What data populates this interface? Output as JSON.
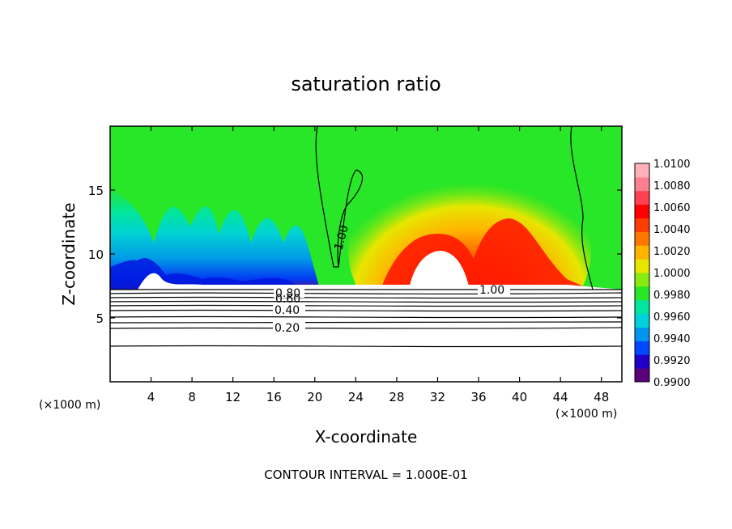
{
  "chart_data": {
    "type": "contour",
    "title": "saturation ratio",
    "xlabel": "X-coordinate",
    "ylabel": "Z-coordinate",
    "x_unit_left": "(×1000 m)",
    "x_unit_right": "(×1000 m)",
    "footer": "CONTOUR INTERVAL = 1.000E-01",
    "xlim": [
      0,
      50
    ],
    "ylim": [
      0,
      20
    ],
    "x_ticks": [
      "4",
      "8",
      "12",
      "16",
      "20",
      "24",
      "28",
      "32",
      "36",
      "40",
      "44",
      "48"
    ],
    "x_tick_values": [
      4,
      8,
      12,
      16,
      20,
      24,
      28,
      32,
      36,
      40,
      44,
      48
    ],
    "y_ticks": [
      "5",
      "10",
      "15"
    ],
    "y_tick_values": [
      5,
      10,
      15
    ],
    "colorbar": {
      "min": 0.99,
      "max": 1.01,
      "labels": [
        "1.0100",
        "1.0080",
        "1.0060",
        "1.0040",
        "1.0020",
        "1.0000",
        "0.9980",
        "0.9960",
        "0.9940",
        "0.9920",
        "0.9900"
      ],
      "colors": [
        "#5a0078",
        "#2000c8",
        "#0048ff",
        "#0096f0",
        "#00d2dc",
        "#00e6a0",
        "#28e628",
        "#88ea10",
        "#e6e600",
        "#ffb400",
        "#ff7800",
        "#ff3c00",
        "#ff0000",
        "#ff4050",
        "#ff8090",
        "#ffb0b8"
      ]
    },
    "contour_labels": [
      "0.80",
      "0.60",
      "0.40",
      "0.20",
      "1.00",
      "1.00"
    ],
    "surface_z": 7.2,
    "blank_region_regions": [
      [
        28,
        34
      ],
      [
        20,
        46
      ]
    ]
  }
}
